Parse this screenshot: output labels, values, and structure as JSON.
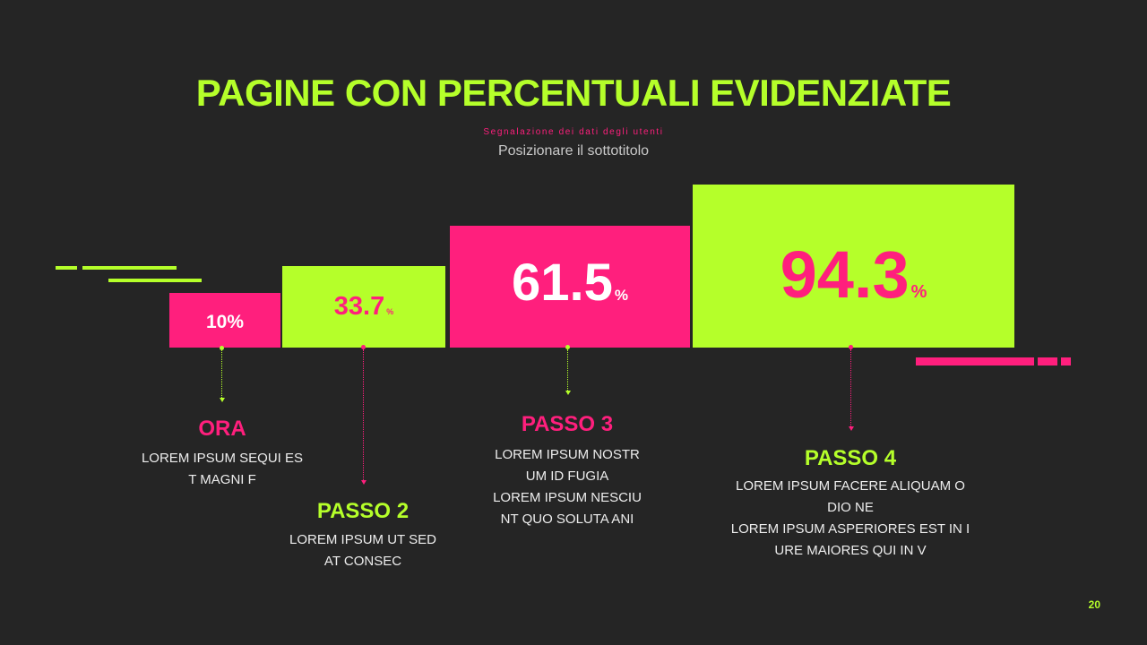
{
  "header": {
    "title": "PAGINE CON PERCENTUALI EVIDENZIATE",
    "kicker": "Segnalazione dei dati degli utenti",
    "subtitle": "Posizionare il sottotitolo"
  },
  "colors": {
    "accent_green": "#B5FF2A",
    "accent_pink": "#FF1F7D",
    "background": "#252525"
  },
  "bars": [
    {
      "value": "10%",
      "unit": ""
    },
    {
      "value": "33.7",
      "unit": "%"
    },
    {
      "value": "61.5",
      "unit": "%"
    },
    {
      "value": "94.3",
      "unit": "%"
    }
  ],
  "steps": [
    {
      "title": "ORA",
      "lines": [
        "LOREM IPSUM SEQUI ES",
        "T MAGNI F"
      ]
    },
    {
      "title": "PASSO 2",
      "lines": [
        "LOREM IPSUM UT SED",
        "AT CONSEC"
      ]
    },
    {
      "title": "PASSO 3",
      "lines": [
        "LOREM IPSUM NOSTR",
        "UM ID FUGIA",
        "LOREM IPSUM NESCIU",
        "NT QUO SOLUTA ANI"
      ]
    },
    {
      "title": "PASSO 4",
      "lines": [
        "LOREM IPSUM FACERE ALIQUAM O",
        "DIO NE",
        "LOREM IPSUM ASPERIORES EST IN I",
        "URE MAIORES QUI IN V"
      ]
    }
  ],
  "page_number": "20"
}
